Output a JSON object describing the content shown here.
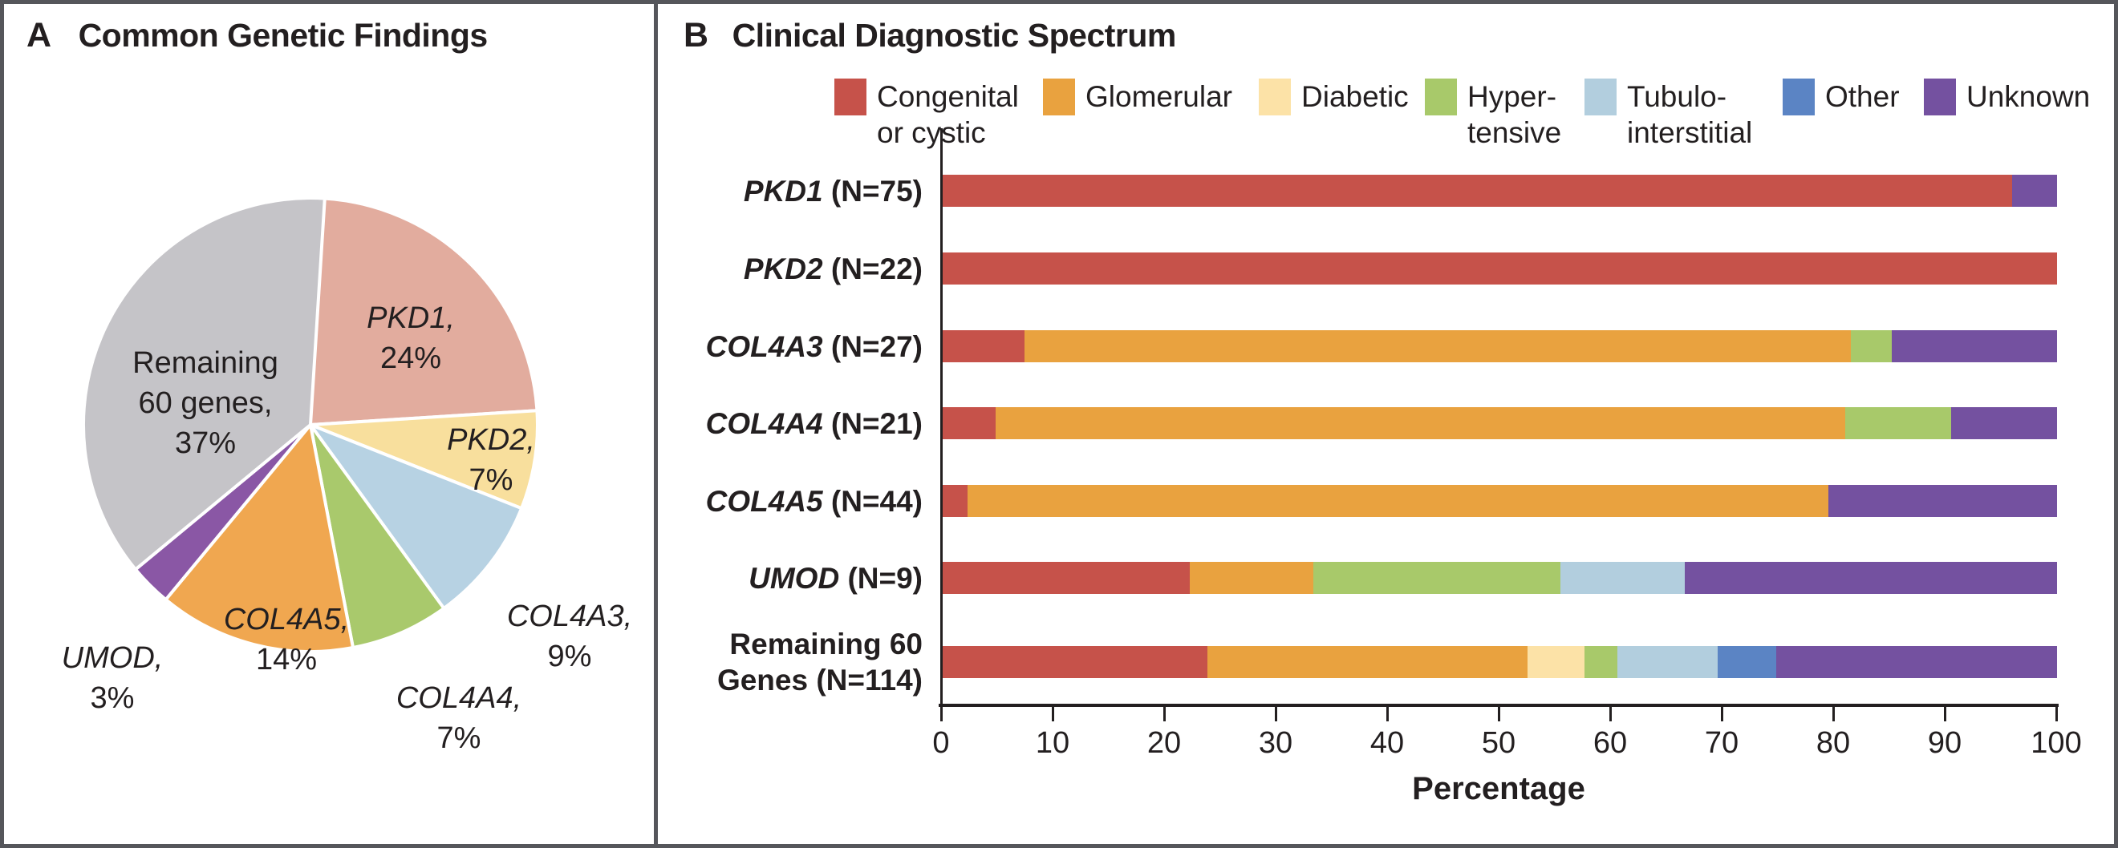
{
  "panels": {
    "a": {
      "letter": "A",
      "title": "Common Genetic Findings"
    },
    "b": {
      "letter": "B",
      "title": "Clinical Diagnostic Spectrum"
    }
  },
  "legend": [
    {
      "lines": [
        "Congenital",
        "or cystic"
      ],
      "color": "#c6524a"
    },
    {
      "lines": [
        "Glomerular"
      ],
      "color": "#e9a23f"
    },
    {
      "lines": [
        "Diabetic"
      ],
      "color": "#fce2a7"
    },
    {
      "lines": [
        "Hyper-",
        "tensive"
      ],
      "color": "#a8c96a"
    },
    {
      "lines": [
        "Tubulo-",
        "interstitial"
      ],
      "color": "#b2cede"
    },
    {
      "lines": [
        "Other"
      ],
      "color": "#5b84c4"
    },
    {
      "lines": [
        "Unknown"
      ],
      "color": "#7451a0"
    }
  ],
  "chart_data": [
    {
      "type": "pie",
      "title": "Common Genetic Findings",
      "slices": [
        {
          "label": "PKD1",
          "pct": 24,
          "color": "#e2ac9e",
          "italic": true,
          "label_lines": [
            "PKD1,",
            "24%"
          ]
        },
        {
          "label": "PKD2",
          "pct": 7,
          "color": "#f8df9d",
          "italic": true,
          "label_lines": [
            "PKD2,",
            "7%"
          ]
        },
        {
          "label": "COL4A3",
          "pct": 9,
          "color": "#b7d2e3",
          "italic": true,
          "label_lines": [
            "COL4A3,",
            "9%"
          ]
        },
        {
          "label": "COL4A4",
          "pct": 7,
          "color": "#a9c96c",
          "italic": true,
          "label_lines": [
            "COL4A4,",
            "7%"
          ]
        },
        {
          "label": "COL4A5",
          "pct": 14,
          "color": "#f0a750",
          "italic": true,
          "label_lines": [
            "COL4A5,",
            "14%"
          ]
        },
        {
          "label": "UMOD",
          "pct": 3,
          "color": "#8a57a5",
          "italic": true,
          "label_lines": [
            "UMOD,",
            "3%"
          ]
        },
        {
          "label": "Remaining 60 genes",
          "pct": 37,
          "color": "#c5c4c8",
          "italic": false,
          "label_lines": [
            "Remaining",
            "60 genes,",
            "37%"
          ]
        }
      ]
    },
    {
      "type": "stacked-bar-horizontal",
      "title": "Clinical Diagnostic Spectrum",
      "xlabel": "Percentage",
      "xlim": [
        0,
        100
      ],
      "xticks": [
        0,
        10,
        20,
        30,
        40,
        50,
        60,
        70,
        80,
        90,
        100
      ],
      "categories": [
        "Congenital or cystic",
        "Glomerular",
        "Diabetic",
        "Hypertensive",
        "Tubulointerstitial",
        "Other",
        "Unknown"
      ],
      "colors": [
        "#c6524a",
        "#e9a23f",
        "#fce2a7",
        "#a8c96a",
        "#b2cede",
        "#5b84c4",
        "#7451a0"
      ],
      "rows": [
        {
          "label_lines": [
            "PKD1"
          ],
          "n_label": "(N=75)",
          "italic": true,
          "values": [
            96,
            0,
            0,
            0,
            0,
            0,
            4
          ]
        },
        {
          "label_lines": [
            "PKD2"
          ],
          "n_label": "(N=22)",
          "italic": true,
          "values": [
            100,
            0,
            0,
            0,
            0,
            0,
            0
          ]
        },
        {
          "label_lines": [
            "COL4A3"
          ],
          "n_label": "(N=27)",
          "italic": true,
          "values": [
            7.4,
            74.1,
            0,
            3.7,
            0,
            0,
            14.8
          ]
        },
        {
          "label_lines": [
            "COL4A4"
          ],
          "n_label": "(N=21)",
          "italic": true,
          "values": [
            4.8,
            76.2,
            0,
            9.5,
            0,
            0,
            9.5
          ]
        },
        {
          "label_lines": [
            "COL4A5"
          ],
          "n_label": "(N=44)",
          "italic": true,
          "values": [
            2.3,
            77.2,
            0,
            0,
            0,
            0,
            20.5
          ]
        },
        {
          "label_lines": [
            "UMOD"
          ],
          "n_label": "(N=9)",
          "italic": true,
          "values": [
            22.2,
            11.1,
            0,
            22.2,
            11.1,
            0,
            33.4
          ]
        },
        {
          "label_lines": [
            "Remaining 60",
            "Genes (N=114)"
          ],
          "n_label": "",
          "italic": false,
          "values": [
            23.8,
            28.7,
            5.1,
            3.0,
            9.0,
            5.2,
            25.2
          ]
        }
      ]
    }
  ]
}
